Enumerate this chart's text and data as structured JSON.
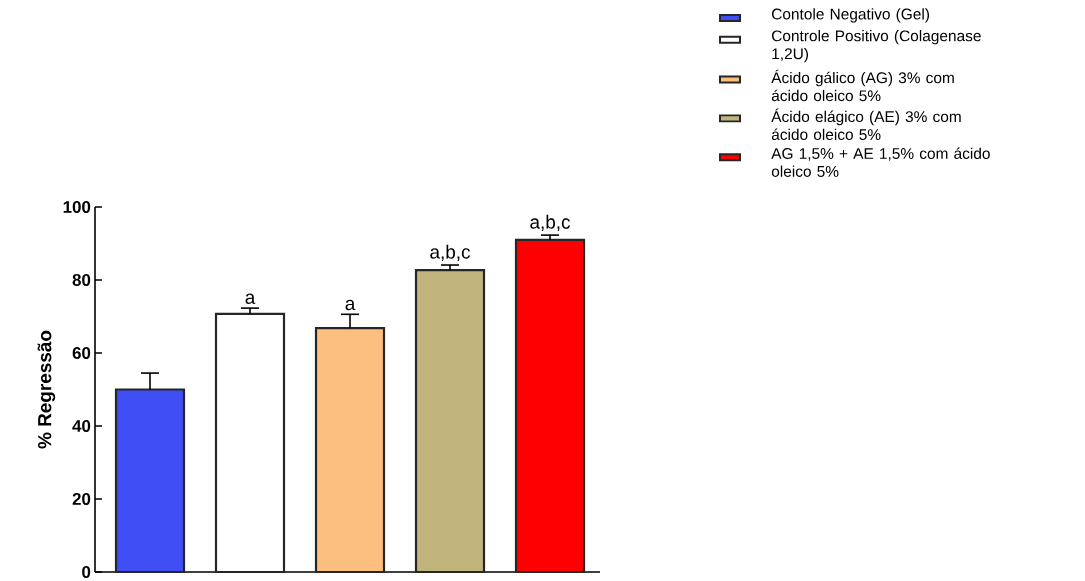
{
  "chart_data": {
    "type": "bar",
    "categories": [
      null,
      null,
      null,
      null,
      null
    ],
    "ylabel": "% Regressão",
    "ylim": [
      0,
      100
    ],
    "yticks": [
      0,
      20,
      40,
      60,
      80,
      100
    ],
    "tick_labels": "y",
    "legend": "right",
    "series": [
      {
        "name": "Contole Negativo (Gel)",
        "color": "#3f4ff5",
        "values": [
          50,
          null,
          null,
          null,
          null
        ],
        "errors": [
          4.5,
          null,
          null,
          null,
          null
        ]
      },
      {
        "name": "Controle Positivo (Colagenase 1,2U)",
        "color": "#ffffff",
        "values": [
          null,
          70.7,
          null,
          null,
          null
        ],
        "errors": [
          null,
          1.6,
          null,
          null,
          null
        ],
        "value_labels": [
          null,
          "a",
          null,
          null,
          null
        ]
      },
      {
        "name": "Ácido gálico (AG) 3%  com ácido oleico 5%",
        "color": "#fdbf80",
        "values": [
          null,
          null,
          66.8,
          null,
          null
        ],
        "errors": [
          null,
          null,
          3.8,
          null,
          null
        ],
        "value_labels": [
          null,
          null,
          "a",
          null,
          null
        ]
      },
      {
        "name": "Ácido elágico (AE) 3% com ácido oleico 5%",
        "color": "#c0b47c",
        "values": [
          null,
          null,
          null,
          82.7,
          null
        ],
        "errors": [
          null,
          null,
          null,
          1.4,
          null
        ],
        "value_labels": [
          null,
          null,
          null,
          "a,b,c",
          null
        ]
      },
      {
        "name": "AG 1,5% + AE 1,5% com ácido oleico 5%",
        "color": "#ff0000",
        "values": [
          null,
          null,
          null,
          null,
          91
        ],
        "errors": [
          null,
          null,
          null,
          null,
          1.3
        ],
        "value_labels": [
          null,
          null,
          null,
          null,
          "a,b,c"
        ]
      }
    ]
  }
}
